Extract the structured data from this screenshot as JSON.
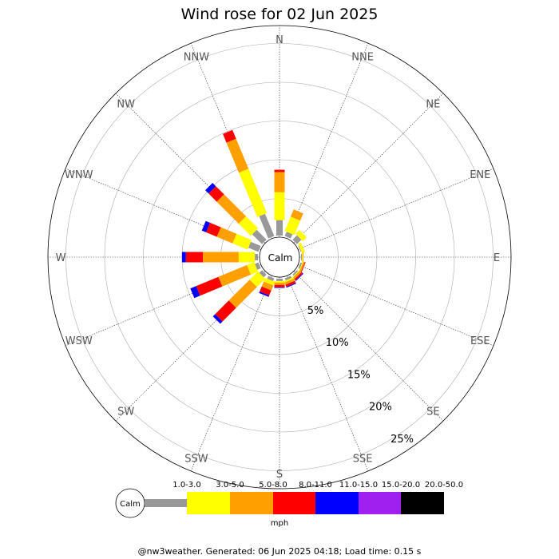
{
  "chart_data": {
    "type": "wind-rose",
    "title": "Wind rose for 02 Jun 2025",
    "center_label": "Calm",
    "directions": [
      "N",
      "NNE",
      "NE",
      "ENE",
      "E",
      "ESE",
      "SE",
      "SSE",
      "S",
      "SSW",
      "SW",
      "WSW",
      "W",
      "WNW",
      "NW",
      "NNW"
    ],
    "ring_labels": [
      "5%",
      "10%",
      "15%",
      "20%",
      "25%"
    ],
    "rings": [
      5,
      10,
      15,
      20,
      25
    ],
    "bins": [
      "1.0-3.0",
      "3.0-5.0",
      "5.0-8.0",
      "8.0-11.0",
      "11.0-15.0",
      "15.0-20.0",
      "20.0-50.0"
    ],
    "bin_colors": [
      "#999999",
      "#ffff00",
      "#ff9f00",
      "#ff0000",
      "#0000ff",
      "#a020f0",
      "#000000"
    ],
    "units": "mph",
    "series": [
      {
        "name": "N",
        "values": [
          2.0,
          3.6,
          2.6,
          0.3,
          0,
          0,
          0
        ]
      },
      {
        "name": "NNE",
        "values": [
          0.6,
          2.0,
          1.0,
          0,
          0,
          0,
          0
        ]
      },
      {
        "name": "NE",
        "values": [
          0.8,
          0.7,
          0,
          0,
          0,
          0,
          0
        ]
      },
      {
        "name": "ENE",
        "values": [
          0.1,
          0.4,
          0,
          0,
          0,
          0,
          0
        ]
      },
      {
        "name": "E",
        "values": [
          0.1,
          0.1,
          0.1,
          0,
          0,
          0,
          0
        ]
      },
      {
        "name": "ESE",
        "values": [
          0.2,
          0.1,
          0.2,
          0.1,
          0,
          0,
          0
        ]
      },
      {
        "name": "SE",
        "values": [
          0.2,
          0.1,
          0.3,
          0.2,
          0.1,
          0,
          0
        ]
      },
      {
        "name": "SSE",
        "values": [
          0.3,
          0.2,
          0.3,
          0.3,
          0.1,
          0,
          0
        ]
      },
      {
        "name": "S",
        "values": [
          0.3,
          0.2,
          0.3,
          0.3,
          0.1,
          0,
          0
        ]
      },
      {
        "name": "SSW",
        "values": [
          0.4,
          0.5,
          0.7,
          0.7,
          0.2,
          0,
          0
        ]
      },
      {
        "name": "SW",
        "values": [
          0.5,
          1.5,
          3.8,
          2.5,
          0.4,
          0,
          0
        ]
      },
      {
        "name": "WSW",
        "values": [
          0.5,
          1.0,
          4.0,
          3.1,
          0.8,
          0,
          0
        ]
      },
      {
        "name": "W",
        "values": [
          0.4,
          2.1,
          4.6,
          2.2,
          0.5,
          0,
          0
        ]
      },
      {
        "name": "WNW",
        "values": [
          1.4,
          2.1,
          2.2,
          1.5,
          0.6,
          0,
          0
        ]
      },
      {
        "name": "NW",
        "values": [
          1.8,
          2.2,
          4.0,
          1.5,
          0.6,
          0,
          0
        ]
      },
      {
        "name": "NNW",
        "values": [
          3.1,
          6.2,
          4.2,
          1.2,
          0,
          0,
          0
        ]
      }
    ],
    "grid": true
  },
  "footer": "@nw3weather. Generated: 06 Jun 2025 04:18; Load time: 0.15 s"
}
